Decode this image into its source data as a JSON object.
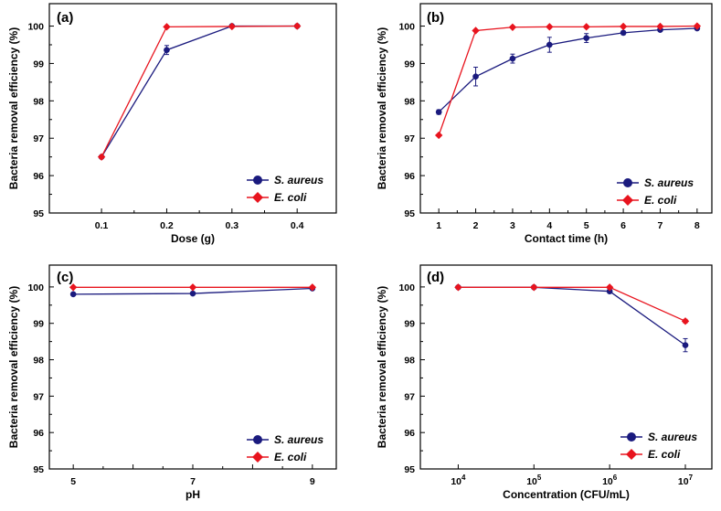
{
  "colors": {
    "s_aureus": "#1a1a7e",
    "e_coli": "#e8141e",
    "axis": "#000000"
  },
  "chart_data": [
    {
      "type": "line",
      "panel": "(a)",
      "xlabel": "Dose (g)",
      "ylabel": "Bacteria removal efficiency (%)",
      "xlim": [
        0.02,
        0.46
      ],
      "ylim": [
        95,
        100.6
      ],
      "xticks": [
        0.1,
        0.2,
        0.3,
        0.4
      ],
      "xtick_labels": [
        "0.1",
        "0.2",
        "0.3",
        "0.4"
      ],
      "yticks": [
        95,
        96,
        97,
        98,
        99,
        100
      ],
      "ytick_labels": [
        "95",
        "96",
        "97",
        "98",
        "99",
        "100"
      ],
      "legend_position": "bottom-right",
      "series": [
        {
          "name": "S. aureus",
          "marker": "circle",
          "x": [
            0.1,
            0.2,
            0.3,
            0.4
          ],
          "y": [
            96.5,
            99.36,
            100.0,
            100.0
          ],
          "err": [
            0,
            0.12,
            0,
            0
          ]
        },
        {
          "name": "E. coli",
          "marker": "diamond",
          "x": [
            0.1,
            0.2,
            0.3,
            0.4
          ],
          "y": [
            96.5,
            99.98,
            99.99,
            100.0
          ],
          "err": [
            0,
            0,
            0,
            0
          ]
        }
      ]
    },
    {
      "type": "line",
      "panel": "(b)",
      "xlabel": "Contact time (h)",
      "ylabel": "Bacteria removal efficiency (%)",
      "xlim": [
        0.5,
        8.4
      ],
      "ylim": [
        95,
        100.6
      ],
      "xticks": [
        1,
        2,
        3,
        4,
        5,
        6,
        7,
        8
      ],
      "xtick_labels": [
        "1",
        "2",
        "3",
        "4",
        "5",
        "6",
        "7",
        "8"
      ],
      "yticks": [
        95,
        96,
        97,
        98,
        99,
        100
      ],
      "ytick_labels": [
        "95",
        "96",
        "97",
        "98",
        "99",
        "100"
      ],
      "legend_position": "bottom-right",
      "series": [
        {
          "name": "S. aureus",
          "marker": "circle",
          "x": [
            1,
            2,
            3,
            4,
            5,
            6,
            7,
            8
          ],
          "y": [
            97.7,
            98.65,
            99.13,
            99.5,
            99.68,
            99.82,
            99.9,
            99.94
          ],
          "err": [
            0.06,
            0.25,
            0.12,
            0.2,
            0.12,
            0.05,
            0.04,
            0.03
          ]
        },
        {
          "name": "E. coli",
          "marker": "diamond",
          "x": [
            1,
            2,
            3,
            4,
            5,
            6,
            7,
            8
          ],
          "y": [
            97.08,
            99.88,
            99.97,
            99.98,
            99.98,
            99.99,
            99.99,
            100.0
          ],
          "err": [
            0,
            0,
            0,
            0,
            0,
            0,
            0,
            0
          ]
        }
      ]
    },
    {
      "type": "line",
      "panel": "(c)",
      "xlabel": "pH",
      "ylabel": "Bacteria removal efficiency (%)",
      "xlim": [
        4.6,
        9.4
      ],
      "ylim": [
        95,
        100.6
      ],
      "xticks": [
        5,
        6,
        7,
        8,
        9
      ],
      "xtick_labels": [
        "5",
        "",
        "7",
        "",
        "9"
      ],
      "yticks": [
        95,
        96,
        97,
        98,
        99,
        100
      ],
      "ytick_labels": [
        "95",
        "96",
        "97",
        "98",
        "99",
        "100"
      ],
      "legend_position": "bottom-right",
      "series": [
        {
          "name": "S. aureus",
          "marker": "circle",
          "x": [
            5,
            7,
            9
          ],
          "y": [
            99.8,
            99.82,
            99.96
          ],
          "err": [
            0,
            0,
            0
          ]
        },
        {
          "name": "E. coli",
          "marker": "diamond",
          "x": [
            5,
            7,
            9
          ],
          "y": [
            99.99,
            99.99,
            99.99
          ],
          "err": [
            0,
            0,
            0
          ]
        }
      ]
    },
    {
      "type": "line",
      "panel": "(d)",
      "xlabel": "Concentration (CFU/mL)",
      "ylabel": "Bacteria removal efficiency (%)",
      "xscale": "log",
      "xlim_exponent": [
        3.5,
        7.35
      ],
      "ylim": [
        95,
        100.6
      ],
      "xtick_exponents": [
        4,
        5,
        6,
        7
      ],
      "xtick_labels": [
        "10",
        "10",
        "10",
        "10"
      ],
      "xtick_label_exponents": [
        "4",
        "5",
        "6",
        "7"
      ],
      "yticks": [
        95,
        96,
        97,
        98,
        99,
        100
      ],
      "ytick_labels": [
        "95",
        "96",
        "97",
        "98",
        "99",
        "100"
      ],
      "legend_position": "bottom-right",
      "series": [
        {
          "name": "S. aureus",
          "marker": "circle",
          "x_exponent": [
            4,
            5,
            6,
            7
          ],
          "y": [
            99.99,
            99.99,
            99.88,
            98.4
          ],
          "err": [
            0,
            0,
            0.05,
            0.18
          ]
        },
        {
          "name": "E. coli",
          "marker": "diamond",
          "x_exponent": [
            4,
            5,
            6,
            7
          ],
          "y": [
            99.99,
            99.99,
            99.99,
            99.06
          ],
          "err": [
            0,
            0,
            0,
            0.05
          ]
        }
      ]
    }
  ]
}
